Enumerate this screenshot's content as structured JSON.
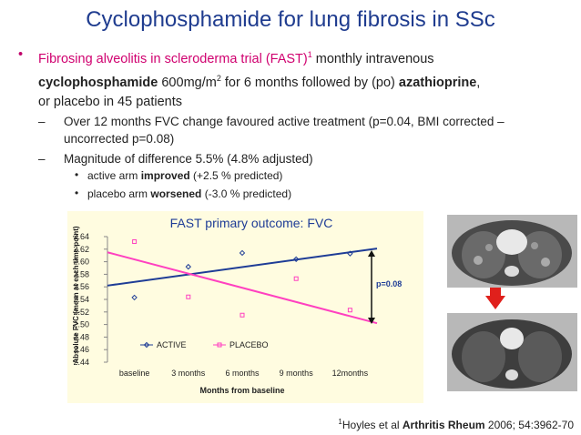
{
  "title": "Cyclophosphamide for lung fibrosis in SSc",
  "bullet1": {
    "bullet": "•",
    "red_text": "Fibrosing alveolitis in scleroderma trial (FAST)",
    "ref": "1",
    "t1": " monthly intravenous",
    "bold1": "cyclophosphamide",
    "t2": " 600mg/m",
    "sup": "2",
    "t3": " for 6 months followed by (po) ",
    "bold2": "azathioprine",
    "t4": ",",
    "line3": "or placebo in 45 patients"
  },
  "sub1": {
    "dash": "–",
    "line1": "Over 12 months FVC change favoured active treatment (p=0.04, BMI corrected –",
    "line2": "uncorrected p=0.08)"
  },
  "sub2": {
    "dash": "–",
    "text": "Magnitude of difference 5.5% (4.8% adjusted)"
  },
  "subsub1": {
    "dot": "•",
    "pre": "active arm ",
    "bold": "improved",
    "post": " (+2.5 % predicted)"
  },
  "subsub2": {
    "dot": "•",
    "pre": "placebo arm ",
    "bold": "worsened",
    "post": " (-3.0 % predicted)"
  },
  "chart_data": {
    "type": "scatter",
    "title": "FAST primary outcome: FVC",
    "xlabel": "Months from baseline",
    "ylabel": "Absolute FVC (mean at each time point)",
    "categories": [
      "baseline",
      "3 months",
      "6 months",
      "9 months",
      "12months"
    ],
    "ylim": [
      2.44,
      2.64
    ],
    "yticks": [
      "2.64",
      "2.62",
      "2.60",
      "2.58",
      "2.56",
      "2.54",
      "2.52",
      "2.50",
      "2.48",
      "2.46",
      "2.44"
    ],
    "series": [
      {
        "name": "ACTIVE",
        "color": "#1e3c96",
        "marker": "diamond",
        "values": [
          2.543,
          2.592,
          2.614,
          2.604,
          2.613
        ],
        "trend": [
          2.562,
          2.621
        ]
      },
      {
        "name": "PLACEBO",
        "color": "#ff40c0",
        "marker": "square",
        "values": [
          2.632,
          2.544,
          2.515,
          2.573,
          2.523
        ],
        "trend": [
          2.615,
          2.502
        ]
      }
    ],
    "annotation": "p=0.08",
    "grid": false,
    "legend": "lower-left"
  },
  "images": {
    "top": "CT scan of chest showing lung fibrosis",
    "bottom": "CT scan of chest after treatment",
    "arrow_color": "#e0201c"
  },
  "footnote": {
    "sup": "1",
    "pre": "Hoyles et al ",
    "bold": "Arthritis Rheum",
    "post": " 2006; 54:3962-70"
  }
}
